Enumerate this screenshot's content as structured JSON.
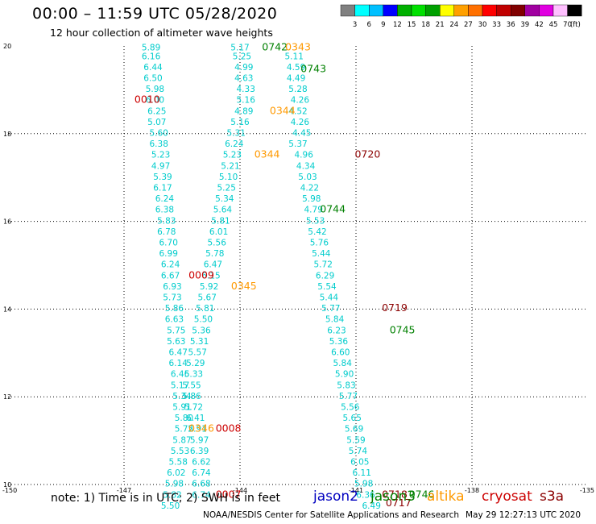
{
  "header": {
    "title": "00:00 – 11:59 UTC 05/28/2020",
    "subtitle": "12 hour collection of altimeter wave heights"
  },
  "legend": {
    "colors": [
      "#808080",
      "#00ffff",
      "#00c0ff",
      "#0000ff",
      "#00b000",
      "#00e000",
      "#00a000",
      "#ffff00",
      "#ffa000",
      "#ff7000",
      "#ff0000",
      "#c00000",
      "#800000",
      "#a000a0",
      "#e000e0",
      "#ffc0ff",
      "#000000"
    ],
    "labels": [
      "3",
      "6",
      "9",
      "12",
      "15",
      "18",
      "21",
      "24",
      "27",
      "30",
      "33",
      "36",
      "39",
      "42",
      "45",
      "70",
      "(ft)"
    ]
  },
  "footer": {
    "note": "note:  1) Time is in UTC;  2) SWH is in feet",
    "satellites": [
      {
        "name": "jason2",
        "color": "#0000c0"
      },
      {
        "name": "jason3",
        "color": "#008000"
      },
      {
        "name": "altika",
        "color": "#ff9900"
      },
      {
        "name": "cryosat",
        "color": "#cc0000"
      },
      {
        "name": "s3a",
        "color": "#8b0000"
      }
    ],
    "credit": "NOAA/NESDIS Center for Satellite Applications and Research",
    "timestamp": "May 29 12:27:13 UTC 2020"
  },
  "chart_data": {
    "type": "scatter",
    "description_units": "longitude degrees east (x), latitude degrees north (y), values are significant wave height in feet",
    "xlim": [
      -150,
      -135
    ],
    "ylim": [
      10,
      20
    ],
    "x_ticks": [
      -150,
      -147,
      -144,
      -141,
      -138,
      -135
    ],
    "x_tick_labels": [
      "-150",
      "-147",
      "-144",
      "-141",
      "-138",
      "-135"
    ],
    "y_ticks": [
      10,
      12,
      14,
      16,
      18,
      20
    ],
    "grid": true,
    "swh_color": "#00cccc",
    "tracks": [
      {
        "name": "track-west",
        "points": [
          {
            "lon": -146.3,
            "lat": 19.9,
            "v": "5.89"
          },
          {
            "lon": -146.3,
            "lat": 19.7,
            "v": "6.16"
          },
          {
            "lon": -146.25,
            "lat": 19.45,
            "v": "6.44"
          },
          {
            "lon": -146.25,
            "lat": 19.2,
            "v": "6.50"
          },
          {
            "lon": -146.2,
            "lat": 18.95,
            "v": "5.98"
          },
          {
            "lon": -146.2,
            "lat": 18.7,
            "v": "6.00"
          },
          {
            "lon": -146.15,
            "lat": 18.45,
            "v": "6.25"
          },
          {
            "lon": -146.15,
            "lat": 18.2,
            "v": "5.07"
          },
          {
            "lon": -146.1,
            "lat": 17.95,
            "v": "5.60"
          },
          {
            "lon": -146.1,
            "lat": 17.7,
            "v": "6.38"
          },
          {
            "lon": -146.05,
            "lat": 17.45,
            "v": "5.23"
          },
          {
            "lon": -146.05,
            "lat": 17.2,
            "v": "4.97"
          },
          {
            "lon": -146.0,
            "lat": 16.95,
            "v": "5.39"
          },
          {
            "lon": -146.0,
            "lat": 16.7,
            "v": "6.17"
          },
          {
            "lon": -145.95,
            "lat": 16.45,
            "v": "6.24"
          },
          {
            "lon": -145.95,
            "lat": 16.2,
            "v": "6.38"
          },
          {
            "lon": -145.9,
            "lat": 15.95,
            "v": "5.83"
          },
          {
            "lon": -145.9,
            "lat": 15.7,
            "v": "6.78"
          },
          {
            "lon": -145.85,
            "lat": 15.45,
            "v": "6.70"
          },
          {
            "lon": -145.85,
            "lat": 15.2,
            "v": "6.99"
          },
          {
            "lon": -145.8,
            "lat": 14.95,
            "v": "6.24"
          },
          {
            "lon": -145.8,
            "lat": 14.7,
            "v": "6.67"
          },
          {
            "lon": -145.75,
            "lat": 14.45,
            "v": "6.93"
          },
          {
            "lon": -145.75,
            "lat": 14.2,
            "v": "5.73"
          },
          {
            "lon": -145.7,
            "lat": 13.95,
            "v": "5.86"
          },
          {
            "lon": -145.7,
            "lat": 13.7,
            "v": "6.63"
          },
          {
            "lon": -145.65,
            "lat": 13.45,
            "v": "5.75"
          },
          {
            "lon": -145.65,
            "lat": 13.2,
            "v": "5.63"
          },
          {
            "lon": -145.6,
            "lat": 12.95,
            "v": "6.47"
          },
          {
            "lon": -145.6,
            "lat": 12.7,
            "v": "6.14"
          },
          {
            "lon": -145.55,
            "lat": 12.45,
            "v": "6.46"
          },
          {
            "lon": -145.55,
            "lat": 12.2,
            "v": "5.17"
          },
          {
            "lon": -145.5,
            "lat": 11.95,
            "v": "5.34"
          },
          {
            "lon": -145.5,
            "lat": 11.7,
            "v": "5.91"
          },
          {
            "lon": -145.45,
            "lat": 11.45,
            "v": "5.80"
          },
          {
            "lon": -145.45,
            "lat": 11.2,
            "v": "5.72"
          },
          {
            "lon": -145.5,
            "lat": 10.95,
            "v": "5.87"
          },
          {
            "lon": -145.55,
            "lat": 10.7,
            "v": "5.53"
          },
          {
            "lon": -145.6,
            "lat": 10.45,
            "v": "5.58"
          },
          {
            "lon": -145.65,
            "lat": 10.2,
            "v": "6.02"
          },
          {
            "lon": -145.7,
            "lat": 9.95,
            "v": "5.98"
          },
          {
            "lon": -145.75,
            "lat": 9.7,
            "v": "5.82"
          },
          {
            "lon": -145.8,
            "lat": 9.45,
            "v": "5.50"
          }
        ]
      },
      {
        "name": "track-middle",
        "points": [
          {
            "lon": -144.0,
            "lat": 19.9,
            "v": "5.17"
          },
          {
            "lon": -143.95,
            "lat": 19.7,
            "v": "5.25"
          },
          {
            "lon": -143.9,
            "lat": 19.45,
            "v": "4.99"
          },
          {
            "lon": -143.9,
            "lat": 19.2,
            "v": "4.63"
          },
          {
            "lon": -143.85,
            "lat": 18.95,
            "v": "4.33"
          },
          {
            "lon": -143.85,
            "lat": 18.7,
            "v": "5.16"
          },
          {
            "lon": -143.9,
            "lat": 18.45,
            "v": "4.89"
          },
          {
            "lon": -144.0,
            "lat": 18.2,
            "v": "5.16"
          },
          {
            "lon": -144.1,
            "lat": 17.95,
            "v": "5.31"
          },
          {
            "lon": -144.15,
            "lat": 17.7,
            "v": "6.24"
          },
          {
            "lon": -144.2,
            "lat": 17.45,
            "v": "5.23"
          },
          {
            "lon": -144.25,
            "lat": 17.2,
            "v": "5.21"
          },
          {
            "lon": -144.3,
            "lat": 16.95,
            "v": "5.10"
          },
          {
            "lon": -144.35,
            "lat": 16.7,
            "v": "5.25"
          },
          {
            "lon": -144.4,
            "lat": 16.45,
            "v": "5.34"
          },
          {
            "lon": -144.45,
            "lat": 16.2,
            "v": "5.64"
          },
          {
            "lon": -144.5,
            "lat": 15.95,
            "v": "5.81"
          },
          {
            "lon": -144.55,
            "lat": 15.7,
            "v": "6.01"
          },
          {
            "lon": -144.6,
            "lat": 15.45,
            "v": "5.56"
          },
          {
            "lon": -144.65,
            "lat": 15.2,
            "v": "5.78"
          },
          {
            "lon": -144.7,
            "lat": 14.95,
            "v": "6.47"
          },
          {
            "lon": -144.75,
            "lat": 14.7,
            "v": "6.15"
          },
          {
            "lon": -144.8,
            "lat": 14.45,
            "v": "5.92"
          },
          {
            "lon": -144.85,
            "lat": 14.2,
            "v": "5.67"
          },
          {
            "lon": -144.9,
            "lat": 13.95,
            "v": "5.81"
          },
          {
            "lon": -144.95,
            "lat": 13.7,
            "v": "5.50"
          },
          {
            "lon": -145.0,
            "lat": 13.45,
            "v": "5.36"
          },
          {
            "lon": -145.05,
            "lat": 13.2,
            "v": "5.31"
          },
          {
            "lon": -145.1,
            "lat": 12.95,
            "v": "5.57"
          },
          {
            "lon": -145.15,
            "lat": 12.7,
            "v": "5.29"
          },
          {
            "lon": -145.2,
            "lat": 12.45,
            "v": "5.33"
          },
          {
            "lon": -145.25,
            "lat": 12.2,
            "v": "5.55"
          },
          {
            "lon": -145.25,
            "lat": 11.95,
            "v": "5.86"
          },
          {
            "lon": -145.2,
            "lat": 11.7,
            "v": "5.72"
          },
          {
            "lon": -145.15,
            "lat": 11.45,
            "v": "6.41"
          },
          {
            "lon": -145.1,
            "lat": 11.2,
            "v": "5.91"
          },
          {
            "lon": -145.05,
            "lat": 10.95,
            "v": "5.97"
          },
          {
            "lon": -145.05,
            "lat": 10.7,
            "v": "6.39"
          },
          {
            "lon": -145.0,
            "lat": 10.45,
            "v": "6.62"
          },
          {
            "lon": -145.0,
            "lat": 10.2,
            "v": "6.74"
          },
          {
            "lon": -145.0,
            "lat": 9.95,
            "v": "6.68"
          },
          {
            "lon": -145.0,
            "lat": 9.7,
            "v": "6.74"
          }
        ]
      },
      {
        "name": "track-east",
        "points": [
          {
            "lon": -142.6,
            "lat": 19.7,
            "v": "5.11"
          },
          {
            "lon": -142.55,
            "lat": 19.45,
            "v": "4.59"
          },
          {
            "lon": -142.55,
            "lat": 19.2,
            "v": "4.49"
          },
          {
            "lon": -142.5,
            "lat": 18.95,
            "v": "5.28"
          },
          {
            "lon": -142.45,
            "lat": 18.7,
            "v": "4.26"
          },
          {
            "lon": -142.5,
            "lat": 18.45,
            "v": "4.52"
          },
          {
            "lon": -142.45,
            "lat": 18.2,
            "v": "4.26"
          },
          {
            "lon": -142.4,
            "lat": 17.95,
            "v": "4.45"
          },
          {
            "lon": -142.5,
            "lat": 17.7,
            "v": "5.37"
          },
          {
            "lon": -142.35,
            "lat": 17.45,
            "v": "4.96"
          },
          {
            "lon": -142.3,
            "lat": 17.2,
            "v": "4.34"
          },
          {
            "lon": -142.25,
            "lat": 16.95,
            "v": "5.03"
          },
          {
            "lon": -142.2,
            "lat": 16.7,
            "v": "4.22"
          },
          {
            "lon": -142.15,
            "lat": 16.45,
            "v": "5.98"
          },
          {
            "lon": -142.1,
            "lat": 16.2,
            "v": "4.79"
          },
          {
            "lon": -142.05,
            "lat": 15.95,
            "v": "5.53"
          },
          {
            "lon": -142.0,
            "lat": 15.7,
            "v": "5.42"
          },
          {
            "lon": -141.95,
            "lat": 15.45,
            "v": "5.76"
          },
          {
            "lon": -141.9,
            "lat": 15.2,
            "v": "5.44"
          },
          {
            "lon": -141.85,
            "lat": 14.95,
            "v": "5.72"
          },
          {
            "lon": -141.8,
            "lat": 14.7,
            "v": "6.29"
          },
          {
            "lon": -141.75,
            "lat": 14.45,
            "v": "5.54"
          },
          {
            "lon": -141.7,
            "lat": 14.2,
            "v": "5.44"
          },
          {
            "lon": -141.65,
            "lat": 13.95,
            "v": "5.77"
          },
          {
            "lon": -141.55,
            "lat": 13.7,
            "v": "5.84"
          },
          {
            "lon": -141.5,
            "lat": 13.45,
            "v": "6.23"
          },
          {
            "lon": -141.45,
            "lat": 13.2,
            "v": "5.36"
          },
          {
            "lon": -141.4,
            "lat": 12.95,
            "v": "6.60"
          },
          {
            "lon": -141.35,
            "lat": 12.7,
            "v": "5.84"
          },
          {
            "lon": -141.3,
            "lat": 12.45,
            "v": "5.90"
          },
          {
            "lon": -141.25,
            "lat": 12.2,
            "v": "5.83"
          },
          {
            "lon": -141.2,
            "lat": 11.95,
            "v": "5.77"
          },
          {
            "lon": -141.15,
            "lat": 11.7,
            "v": "5.56"
          },
          {
            "lon": -141.1,
            "lat": 11.45,
            "v": "5.65"
          },
          {
            "lon": -141.05,
            "lat": 11.2,
            "v": "5.69"
          },
          {
            "lon": -141.0,
            "lat": 10.95,
            "v": "5.59"
          },
          {
            "lon": -140.95,
            "lat": 10.7,
            "v": "5.74"
          },
          {
            "lon": -140.9,
            "lat": 10.45,
            "v": "6.05"
          },
          {
            "lon": -140.85,
            "lat": 10.2,
            "v": "6.11"
          },
          {
            "lon": -140.8,
            "lat": 9.95,
            "v": "5.98"
          },
          {
            "lon": -140.75,
            "lat": 9.7,
            "v": "6.36"
          },
          {
            "lon": -140.6,
            "lat": 9.45,
            "v": "6.49"
          }
        ]
      }
    ],
    "pass_labels": [
      {
        "text": "0742",
        "lon": -143.1,
        "lat": 19.9,
        "sat": "jason3"
      },
      {
        "text": "0343",
        "lon": -142.5,
        "lat": 19.9,
        "sat": "altika"
      },
      {
        "text": "0743",
        "lon": -142.1,
        "lat": 19.4,
        "sat": "jason3"
      },
      {
        "text": "0010",
        "lon": -146.4,
        "lat": 18.7,
        "sat": "cryosat"
      },
      {
        "text": "0344",
        "lon": -142.9,
        "lat": 18.45,
        "sat": "altika"
      },
      {
        "text": "0720",
        "lon": -140.7,
        "lat": 17.45,
        "sat": "s3a"
      },
      {
        "text": "0344",
        "lon": -143.3,
        "lat": 17.45,
        "sat": "altika"
      },
      {
        "text": "0744",
        "lon": -141.6,
        "lat": 16.2,
        "sat": "jason3"
      },
      {
        "text": "0009",
        "lon": -145.0,
        "lat": 14.7,
        "sat": "cryosat"
      },
      {
        "text": "0345",
        "lon": -143.9,
        "lat": 14.45,
        "sat": "altika"
      },
      {
        "text": "0719",
        "lon": -140.0,
        "lat": 13.95,
        "sat": "s3a"
      },
      {
        "text": "0745",
        "lon": -139.8,
        "lat": 13.45,
        "sat": "jason3"
      },
      {
        "text": "0346",
        "lon": -145.0,
        "lat": 11.2,
        "sat": "altika"
      },
      {
        "text": "0008",
        "lon": -144.3,
        "lat": 11.2,
        "sat": "cryosat"
      },
      {
        "text": "0718",
        "lon": -140.0,
        "lat": 9.7,
        "sat": "s3a"
      },
      {
        "text": "0746",
        "lon": -139.3,
        "lat": 9.7,
        "sat": "jason3"
      },
      {
        "text": "0007",
        "lon": -144.3,
        "lat": 9.7,
        "sat": "cryosat"
      },
      {
        "text": "0717",
        "lon": -139.9,
        "lat": 9.5,
        "sat": "s3a"
      }
    ]
  }
}
